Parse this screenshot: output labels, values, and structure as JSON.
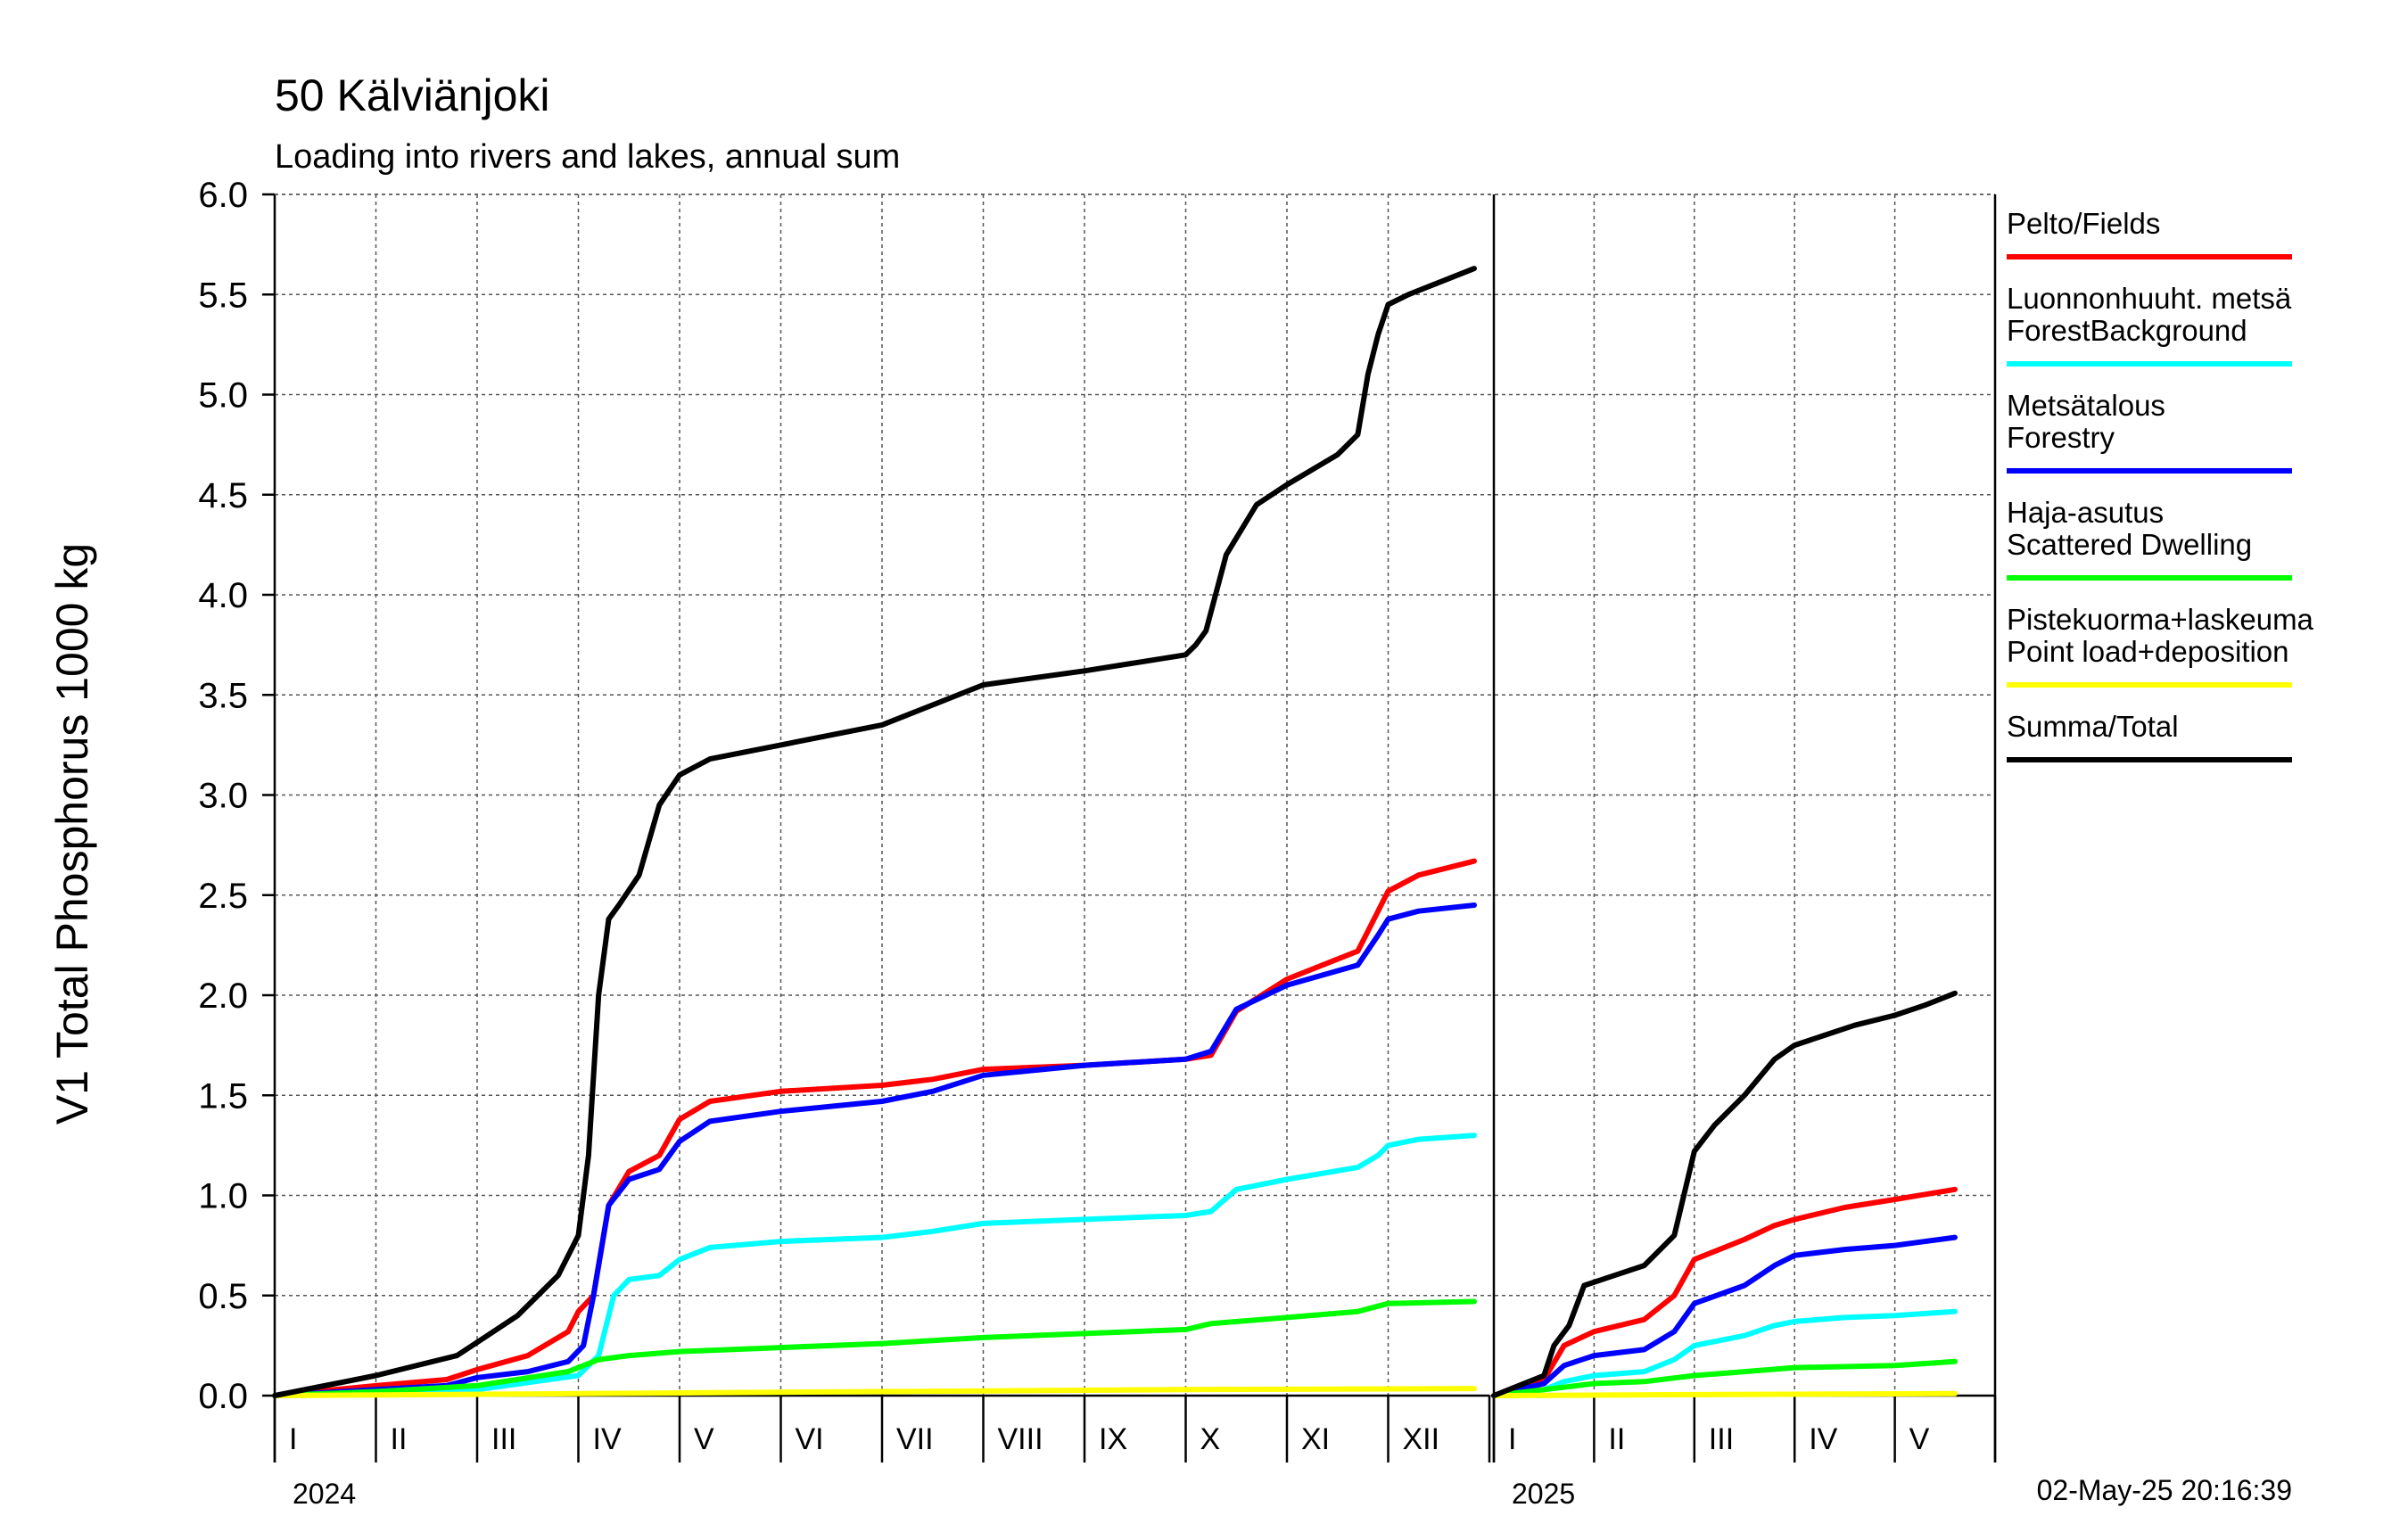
{
  "title": "50 Kälviänjoki",
  "subtitle": "Loading into rivers and lakes, annual sum",
  "timestamp": "02-May-25 20:16:39",
  "chart_data": {
    "type": "line",
    "ylabel": "V1 Total Phosphorus 1000 kg",
    "ylim": [
      0,
      6
    ],
    "yticks": [
      "0.0",
      "0.5",
      "1.0",
      "1.5",
      "2.0",
      "2.5",
      "3.0",
      "3.5",
      "4.0",
      "4.5",
      "5.0",
      "5.5",
      "6.0"
    ],
    "grid": true,
    "legend_position": "right",
    "panels": [
      {
        "year": "2024",
        "months": [
          "I",
          "II",
          "III",
          "IV",
          "V",
          "VI",
          "VII",
          "VIII",
          "IX",
          "X",
          "XI",
          "XII"
        ],
        "x_unit": "month (fractional, 0 = 1 Jan)",
        "series": [
          {
            "name": "Pelto/Fields",
            "color": "#ff0000",
            "x": [
              0,
              1,
              1.7,
              2,
              2.5,
              2.9,
              3.0,
              3.15,
              3.3,
              3.5,
              3.8,
              4.0,
              4.3,
              5,
              6,
              6.5,
              7,
              8,
              9,
              9.25,
              9.5,
              10,
              10.7,
              10.9,
              11,
              11.3,
              11.85
            ],
            "y": [
              0,
              0.05,
              0.08,
              0.13,
              0.2,
              0.32,
              0.42,
              0.5,
              0.95,
              1.12,
              1.2,
              1.38,
              1.47,
              1.52,
              1.55,
              1.58,
              1.63,
              1.65,
              1.68,
              1.7,
              1.92,
              2.08,
              2.22,
              2.42,
              2.52,
              2.6,
              2.67
            ]
          },
          {
            "name": "Luonnonhuuht. metsä ForestBackground",
            "color": "#00ffff",
            "x": [
              0,
              1,
              2,
              3,
              3.2,
              3.35,
              3.5,
              3.8,
              4.0,
              4.3,
              5,
              6,
              6.5,
              7,
              8,
              9,
              9.25,
              9.5,
              10,
              10.7,
              10.9,
              11,
              11.3,
              11.85
            ],
            "y": [
              0,
              0.01,
              0.03,
              0.1,
              0.2,
              0.5,
              0.58,
              0.6,
              0.68,
              0.74,
              0.77,
              0.79,
              0.82,
              0.86,
              0.88,
              0.9,
              0.92,
              1.03,
              1.08,
              1.14,
              1.2,
              1.25,
              1.28,
              1.3
            ]
          },
          {
            "name": "Metsätalous Forestry",
            "color": "#0000ff",
            "x": [
              0,
              1,
              1.7,
              2,
              2.5,
              2.9,
              3.05,
              3.15,
              3.3,
              3.5,
              3.8,
              4.0,
              4.3,
              5,
              6,
              6.5,
              7,
              8,
              9,
              9.25,
              9.5,
              10,
              10.7,
              10.9,
              11,
              11.3,
              11.85
            ],
            "y": [
              0,
              0.03,
              0.05,
              0.09,
              0.12,
              0.17,
              0.25,
              0.5,
              0.95,
              1.08,
              1.13,
              1.27,
              1.37,
              1.42,
              1.47,
              1.52,
              1.6,
              1.65,
              1.68,
              1.72,
              1.93,
              2.05,
              2.15,
              2.3,
              2.38,
              2.42,
              2.45
            ]
          },
          {
            "name": "Haja-asutus Scattered Dwelling",
            "color": "#00ff00",
            "x": [
              0,
              1,
              2,
              2.9,
              3.2,
              3.5,
              4,
              5,
              6,
              7,
              8,
              9,
              9.25,
              10,
              10.7,
              11,
              11.85
            ],
            "y": [
              0,
              0.02,
              0.05,
              0.12,
              0.18,
              0.2,
              0.22,
              0.24,
              0.26,
              0.29,
              0.31,
              0.33,
              0.36,
              0.39,
              0.42,
              0.46,
              0.47
            ]
          },
          {
            "name": "Pistekuorma+laskeuma Point load+deposition",
            "color": "#ffff00",
            "x": [
              0,
              3,
              6,
              9,
              11.85
            ],
            "y": [
              0,
              0.01,
              0.02,
              0.03,
              0.035
            ]
          },
          {
            "name": "Summa/Total",
            "color": "#000000",
            "x": [
              0,
              1,
              1.8,
              2.1,
              2.4,
              2.8,
              3.0,
              3.1,
              3.2,
              3.3,
              3.4,
              3.6,
              3.8,
              4.0,
              4.3,
              5,
              6,
              6.5,
              7,
              8,
              9,
              9.1,
              9.2,
              9.4,
              9.7,
              10,
              10.5,
              10.7,
              10.8,
              10.9,
              11,
              11.2,
              11.85
            ],
            "y": [
              0,
              0.1,
              0.2,
              0.3,
              0.4,
              0.6,
              0.8,
              1.2,
              2.0,
              2.38,
              2.45,
              2.6,
              2.95,
              3.1,
              3.18,
              3.25,
              3.35,
              3.45,
              3.55,
              3.62,
              3.7,
              3.75,
              3.82,
              4.2,
              4.45,
              4.55,
              4.7,
              4.8,
              5.1,
              5.3,
              5.45,
              5.5,
              5.63
            ]
          }
        ]
      },
      {
        "year": "2025",
        "months": [
          "I",
          "II",
          "III",
          "IV",
          "V"
        ],
        "x_unit": "month (fractional, 0 = 1 Jan)",
        "series": [
          {
            "name": "Pelto/Fields",
            "color": "#ff0000",
            "x": [
              0,
              0.5,
              0.7,
              1,
              1.5,
              1.8,
              2,
              2.5,
              2.8,
              3,
              3.5,
              4,
              4.6
            ],
            "y": [
              0,
              0.08,
              0.25,
              0.32,
              0.38,
              0.5,
              0.68,
              0.78,
              0.85,
              0.88,
              0.94,
              0.98,
              1.03
            ]
          },
          {
            "name": "Luonnonhuuht. metsä ForestBackground",
            "color": "#00ffff",
            "x": [
              0,
              0.5,
              0.7,
              1,
              1.5,
              1.8,
              2,
              2.5,
              2.8,
              3,
              3.5,
              4,
              4.6
            ],
            "y": [
              0,
              0.03,
              0.07,
              0.1,
              0.12,
              0.18,
              0.25,
              0.3,
              0.35,
              0.37,
              0.39,
              0.4,
              0.42
            ]
          },
          {
            "name": "Metsätalous Forestry",
            "color": "#0000ff",
            "x": [
              0,
              0.5,
              0.7,
              1,
              1.5,
              1.8,
              2,
              2.5,
              2.8,
              3,
              3.5,
              4,
              4.6
            ],
            "y": [
              0,
              0.06,
              0.15,
              0.2,
              0.23,
              0.32,
              0.46,
              0.55,
              0.65,
              0.7,
              0.73,
              0.75,
              0.79
            ]
          },
          {
            "name": "Haja-asutus Scattered Dwelling",
            "color": "#00ff00",
            "x": [
              0,
              0.5,
              1,
              1.5,
              2,
              2.5,
              3,
              4,
              4.6
            ],
            "y": [
              0,
              0.03,
              0.06,
              0.07,
              0.1,
              0.12,
              0.14,
              0.15,
              0.17
            ]
          },
          {
            "name": "Pistekuorma+laskeuma Point load+deposition",
            "color": "#ffff00",
            "x": [
              0,
              2,
              4.6
            ],
            "y": [
              0,
              0.005,
              0.01
            ]
          },
          {
            "name": "Summa/Total",
            "color": "#000000",
            "x": [
              0,
              0.5,
              0.6,
              0.75,
              0.9,
              1.2,
              1.5,
              1.8,
              2,
              2.2,
              2.5,
              2.8,
              3,
              3.3,
              3.6,
              4,
              4.3,
              4.6
            ],
            "y": [
              0,
              0.1,
              0.25,
              0.35,
              0.55,
              0.6,
              0.65,
              0.8,
              1.22,
              1.35,
              1.5,
              1.68,
              1.75,
              1.8,
              1.85,
              1.9,
              1.95,
              2.01
            ]
          }
        ]
      }
    ]
  }
}
